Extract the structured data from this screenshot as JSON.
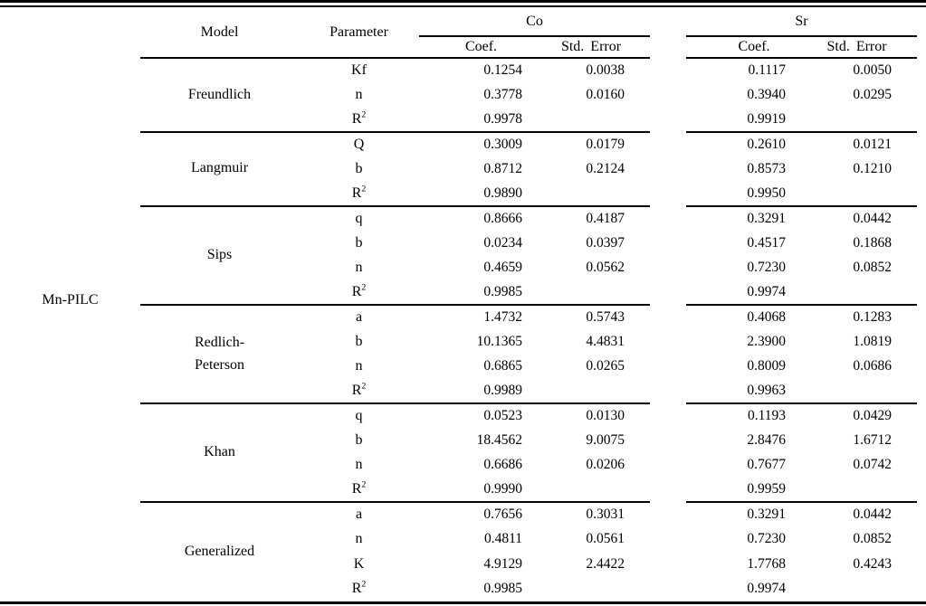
{
  "table": {
    "row_label": "Mn-PILC",
    "headers": {
      "model": "Model",
      "parameter": "Parameter",
      "group_co": "Co",
      "group_sr": "Sr",
      "co_coef": "Coef.",
      "co_std_error": "Std. Error",
      "sr_coef": "Coef.",
      "sr_std_error": "Std. Error"
    },
    "groups": [
      {
        "model": "Freundlich",
        "rows": [
          {
            "param": "Kf",
            "co_coef": "0.1254",
            "co_se": "0.0038",
            "sr_coef": "0.1117",
            "sr_se": "0.0050"
          },
          {
            "param": "n",
            "co_coef": "0.3778",
            "co_se": "0.0160",
            "sr_coef": "0.3940",
            "sr_se": "0.0295"
          },
          {
            "param": "R²",
            "co_coef": "0.9978",
            "co_se": "",
            "sr_coef": "0.9919",
            "sr_se": ""
          }
        ]
      },
      {
        "model": "Langmuir",
        "rows": [
          {
            "param": "Q",
            "co_coef": "0.3009",
            "co_se": "0.0179",
            "sr_coef": "0.2610",
            "sr_se": "0.0121"
          },
          {
            "param": "b",
            "co_coef": "0.8712",
            "co_se": "0.2124",
            "sr_coef": "0.8573",
            "sr_se": "0.1210"
          },
          {
            "param": "R²",
            "co_coef": "0.9890",
            "co_se": "",
            "sr_coef": "0.9950",
            "sr_se": ""
          }
        ]
      },
      {
        "model": "Sips",
        "rows": [
          {
            "param": "q",
            "co_coef": "0.8666",
            "co_se": "0.4187",
            "sr_coef": "0.3291",
            "sr_se": "0.0442"
          },
          {
            "param": "b",
            "co_coef": "0.0234",
            "co_se": "0.0397",
            "sr_coef": "0.4517",
            "sr_se": "0.1868"
          },
          {
            "param": "n",
            "co_coef": "0.4659",
            "co_se": "0.0562",
            "sr_coef": "0.7230",
            "sr_se": "0.0852"
          },
          {
            "param": "R²",
            "co_coef": "0.9985",
            "co_se": "",
            "sr_coef": "0.9974",
            "sr_se": ""
          }
        ]
      },
      {
        "model": "Redlich-\nPeterson",
        "rows": [
          {
            "param": "a",
            "co_coef": "1.4732",
            "co_se": "0.5743",
            "sr_coef": "0.4068",
            "sr_se": "0.1283"
          },
          {
            "param": "b",
            "co_coef": "10.1365",
            "co_se": "4.4831",
            "sr_coef": "2.3900",
            "sr_se": "1.0819"
          },
          {
            "param": "n",
            "co_coef": "0.6865",
            "co_se": "0.0265",
            "sr_coef": "0.8009",
            "sr_se": "0.0686"
          },
          {
            "param": "R²",
            "co_coef": "0.9989",
            "co_se": "",
            "sr_coef": "0.9963",
            "sr_se": ""
          }
        ]
      },
      {
        "model": "Khan",
        "rows": [
          {
            "param": "q",
            "co_coef": "0.0523",
            "co_se": "0.0130",
            "sr_coef": "0.1193",
            "sr_se": "0.0429"
          },
          {
            "param": "b",
            "co_coef": "18.4562",
            "co_se": "9.0075",
            "sr_coef": "2.8476",
            "sr_se": "1.6712"
          },
          {
            "param": "n",
            "co_coef": "0.6686",
            "co_se": "0.0206",
            "sr_coef": "0.7677",
            "sr_se": "0.0742"
          },
          {
            "param": "R²",
            "co_coef": "0.9990",
            "co_se": "",
            "sr_coef": "0.9959",
            "sr_se": ""
          }
        ]
      },
      {
        "model": "Generalized",
        "rows": [
          {
            "param": "a",
            "co_coef": "0.7656",
            "co_se": "0.3031",
            "sr_coef": "0.3291",
            "sr_se": "0.0442"
          },
          {
            "param": "n",
            "co_coef": "0.4811",
            "co_se": "0.0561",
            "sr_coef": "0.7230",
            "sr_se": "0.0852"
          },
          {
            "param": "K",
            "co_coef": "4.9129",
            "co_se": "2.4422",
            "sr_coef": "1.7768",
            "sr_se": "0.4243"
          },
          {
            "param": "R²",
            "co_coef": "0.9985",
            "co_se": "",
            "sr_coef": "0.9974",
            "sr_se": ""
          }
        ]
      }
    ]
  }
}
